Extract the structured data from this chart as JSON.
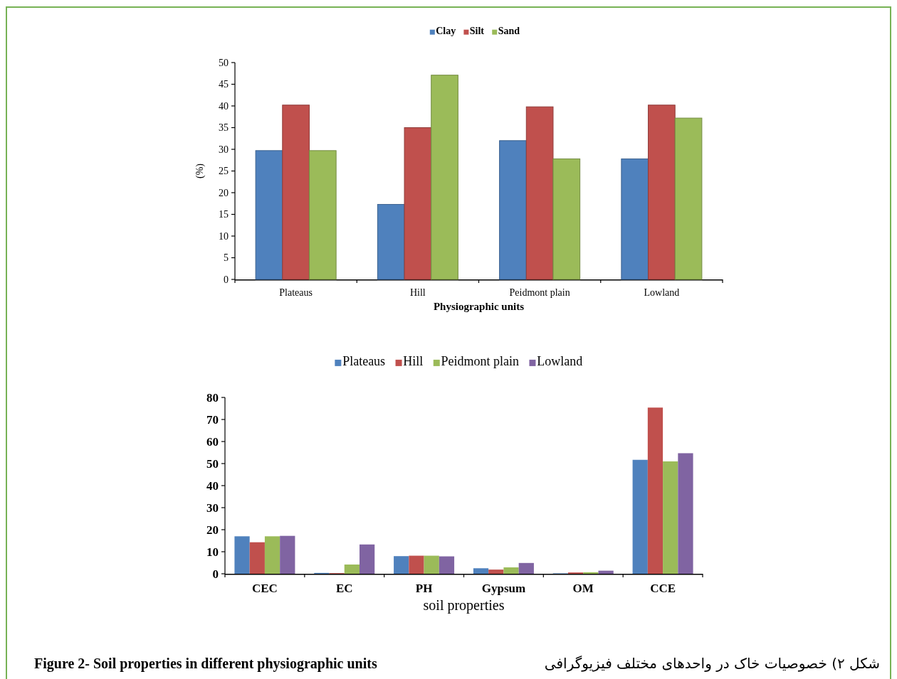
{
  "chart_data": [
    {
      "type": "bar",
      "categories": [
        "Plateaus",
        "Hill",
        "Peidmont plain",
        "Lowland"
      ],
      "xlabel": "Physiographic units",
      "ylabel": "(%)",
      "ylim": [
        0,
        50
      ],
      "yticks": [
        0,
        5,
        10,
        15,
        20,
        25,
        30,
        35,
        40,
        45,
        50
      ],
      "legend": "top",
      "series": [
        {
          "name": "Clay",
          "color": "#4f81bd",
          "values": [
            29.7,
            17.3,
            32,
            27.8
          ]
        },
        {
          "name": "Silt",
          "color": "#c0504d",
          "values": [
            40.2,
            35,
            39.8,
            40.2
          ]
        },
        {
          "name": "Sand",
          "color": "#9bbb59",
          "values": [
            29.7,
            47.1,
            27.8,
            37.2
          ]
        }
      ]
    },
    {
      "type": "bar",
      "categories": [
        "CEC",
        "EC",
        "PH",
        "Gypsum",
        "OM",
        "CCE"
      ],
      "xlabel": "soil properties",
      "ylim": [
        0,
        80
      ],
      "yticks": [
        0,
        10,
        20,
        30,
        40,
        50,
        60,
        70,
        80
      ],
      "legend": "top",
      "series": [
        {
          "name": "Plateaus",
          "color": "#4f81bd",
          "values": [
            17,
            0.4,
            8,
            2.5,
            0.2,
            51.7
          ]
        },
        {
          "name": "Hill",
          "color": "#c0504d",
          "values": [
            14.3,
            0.3,
            8.2,
            1.9,
            0.6,
            75.4
          ]
        },
        {
          "name": "Peidmont plain",
          "color": "#9bbb59",
          "values": [
            17,
            4.2,
            8.2,
            2.9,
            0.7,
            51
          ]
        },
        {
          "name": "Lowland",
          "color": "#8064a2",
          "values": [
            17.2,
            13.3,
            7.9,
            4.9,
            1.4,
            54.7
          ]
        }
      ],
      "annotations": [
        "Figure 2- Soil properties in different physiographic units",
        "شکل ۲) خصوصیات خاک در واحدهای مختلف فیزیوگرافی"
      ]
    }
  ]
}
